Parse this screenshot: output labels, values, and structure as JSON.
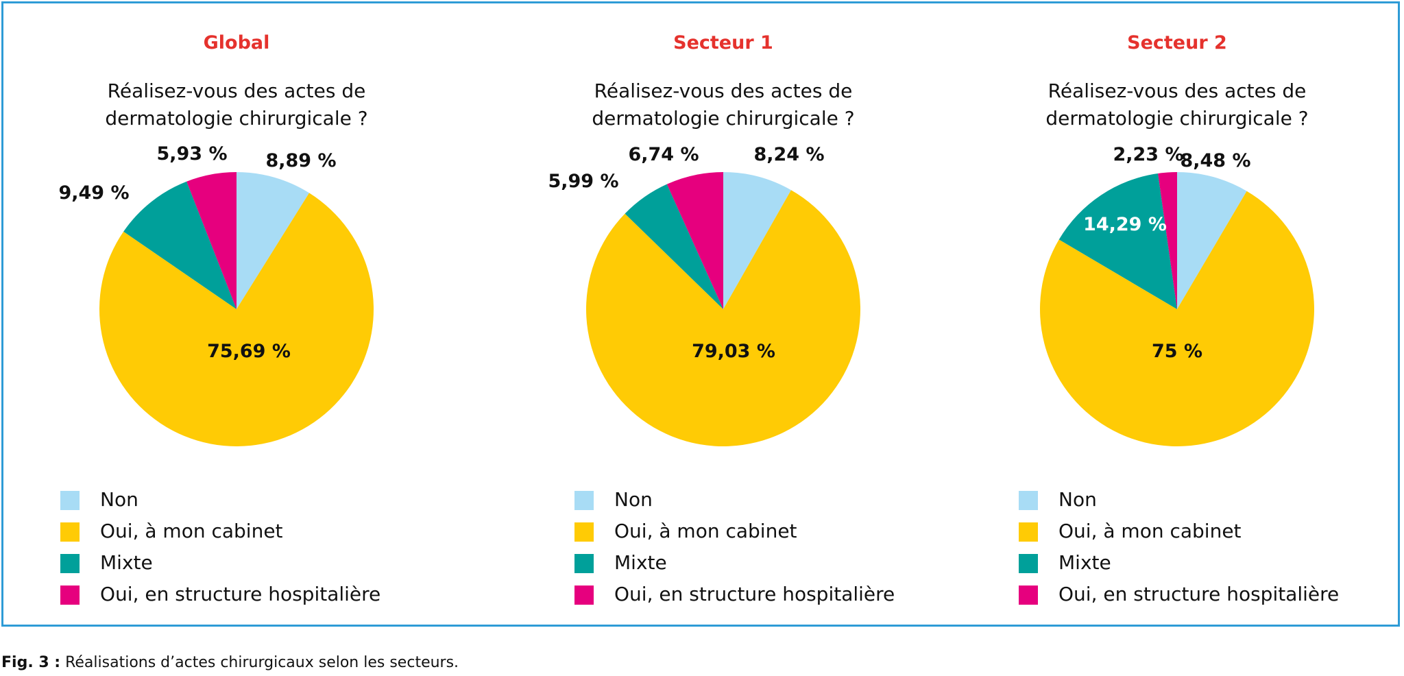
{
  "figure": {
    "caption_label": "Fig. 3 :",
    "caption_text": " Réalisations d’actes chirurgicaux selon les secteurs."
  },
  "colors": {
    "title": "#e5322d",
    "non": "#a8dcf5",
    "oui_cabinet": "#ffcb05",
    "mixte": "#00a09a",
    "oui_hospitaliere": "#e6007e",
    "border": "#2e9bd6"
  },
  "legend": [
    {
      "label": "Non",
      "color_key": "non"
    },
    {
      "label": "Oui, à mon cabinet",
      "color_key": "oui_cabinet"
    },
    {
      "label": "Mixte",
      "color_key": "mixte"
    },
    {
      "label": "Oui, en structure hospitalière",
      "color_key": "oui_hospitaliere"
    }
  ],
  "chart_data": [
    {
      "type": "pie",
      "title": "Global",
      "subtitle_lines": [
        "Réalisez-vous des actes de",
        "dermatologie chirurgicale ?"
      ],
      "categories": [
        "Non",
        "Oui, à mon cabinet",
        "Mixte",
        "Oui, en structure hospitalière"
      ],
      "values": [
        8.89,
        75.69,
        9.49,
        5.93
      ],
      "labels": [
        "8,89 %",
        "75,69 %",
        "9,49 %",
        "5,93 %"
      ],
      "label_colors": [
        "#111111",
        "#111111",
        "#111111",
        "#111111"
      ]
    },
    {
      "type": "pie",
      "title": "Secteur 1",
      "subtitle_lines": [
        "Réalisez-vous des actes de",
        "dermatologie chirurgicale ?"
      ],
      "categories": [
        "Non",
        "Oui, à mon cabinet",
        "Mixte",
        "Oui, en structure hospitalière"
      ],
      "values": [
        8.24,
        79.03,
        5.99,
        6.74
      ],
      "labels": [
        "8,24 %",
        "79,03 %",
        "5,99 %",
        "6,74 %"
      ],
      "label_colors": [
        "#111111",
        "#111111",
        "#111111",
        "#111111"
      ]
    },
    {
      "type": "pie",
      "title": "Secteur 2",
      "subtitle_lines": [
        "Réalisez-vous des actes de",
        "dermatologie chirurgicale ?"
      ],
      "categories": [
        "Non",
        "Oui, à mon cabinet",
        "Mixte",
        "Oui, en structure hospitalière"
      ],
      "values": [
        8.48,
        75,
        14.29,
        2.23
      ],
      "labels": [
        "8,48 %",
        "75 %",
        "14,29 %",
        "2,23 %"
      ],
      "label_colors": [
        "#111111",
        "#111111",
        "#ffffff",
        "#111111"
      ]
    }
  ]
}
